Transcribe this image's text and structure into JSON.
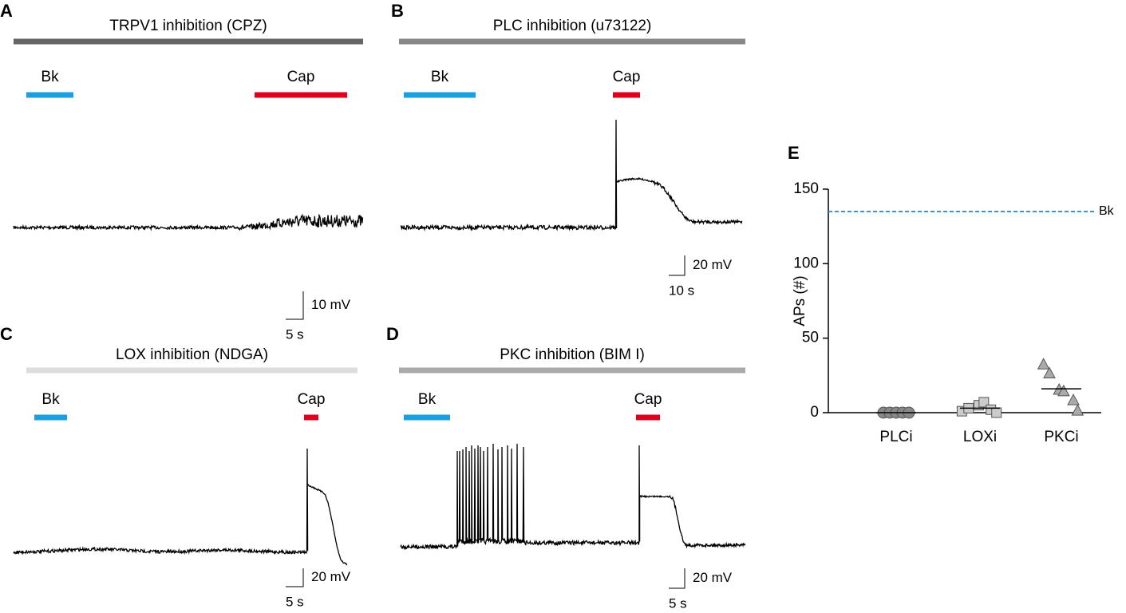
{
  "panels": [
    {
      "letter": "A",
      "title": "TRPV1 inhibition (CPZ)",
      "bar_color": "#666666",
      "drugs": [
        "Bk",
        "Cap"
      ],
      "scale": [
        "10 mV",
        "5 s"
      ]
    },
    {
      "letter": "B",
      "title": "PLC inhibition (u73122)",
      "bar_color": "#888888",
      "drugs": [
        "Bk",
        "Cap"
      ],
      "scale": [
        "20 mV",
        "10 s"
      ]
    },
    {
      "letter": "C",
      "title": "LOX inhibition (NDGA)",
      "bar_color": "#dddddd",
      "drugs": [
        "Bk",
        "Cap"
      ],
      "scale": [
        "20 mV",
        "5 s"
      ]
    },
    {
      "letter": "D",
      "title": "PKC inhibition (BIM I)",
      "bar_color": "#aaaaaa",
      "drugs": [
        "Bk",
        "Cap"
      ],
      "scale": [
        "20 mV",
        "5 s"
      ]
    }
  ],
  "drug_colors": [
    "#1aa0e0",
    "#e0001b"
  ],
  "chart_data": {
    "type": "strip",
    "letter": "E",
    "y_label": "APs (#)",
    "categories": [
      "PLCi",
      "LOXi",
      "PKCi"
    ],
    "markers": [
      "circle",
      "square",
      "triangle"
    ],
    "colors": [
      "#888888",
      "#cccccc",
      "#aaaaaa"
    ],
    "points": [
      [
        0,
        0,
        0,
        0,
        0
      ],
      [
        1,
        3,
        5,
        7,
        2,
        0
      ],
      [
        32,
        26,
        15,
        14,
        8,
        1
      ]
    ],
    "means": [
      0,
      3,
      16
    ],
    "reference": {
      "label": "Bk",
      "value": 135,
      "color": "#1aa0e0"
    },
    "ylim": [
      0,
      150
    ],
    "yticks": [
      0,
      50,
      100,
      150
    ]
  }
}
